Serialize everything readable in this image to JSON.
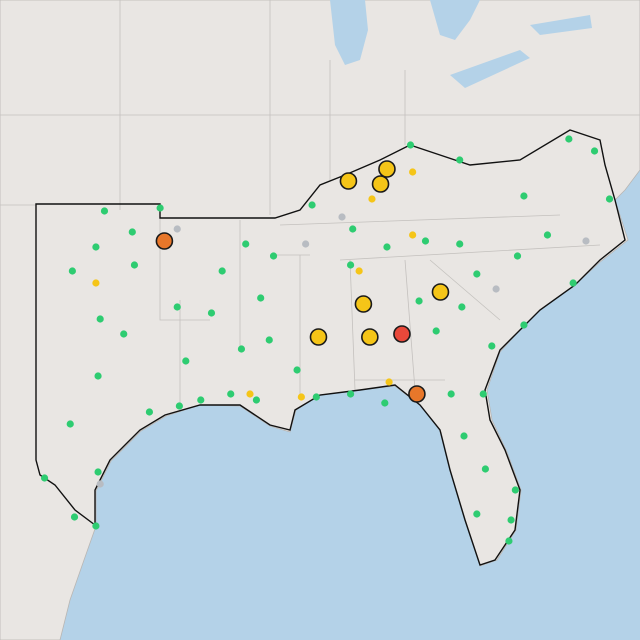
{
  "map": {
    "marker_groups": [
      {
        "kind": "small",
        "color": "#2ecc71",
        "points": [
          [
            -99.8,
            36.8
          ],
          [
            -97.2,
            36.9
          ],
          [
            -100.2,
            35.6
          ],
          [
            -98.5,
            36.1
          ],
          [
            -101.3,
            34.8
          ],
          [
            -98.4,
            35.0
          ],
          [
            -100.0,
            33.2
          ],
          [
            -98.9,
            32.7
          ],
          [
            -100.1,
            31.3
          ],
          [
            -101.4,
            29.7
          ],
          [
            -97.7,
            30.1
          ],
          [
            -96.3,
            30.3
          ],
          [
            -100.1,
            28.1
          ],
          [
            -102.6,
            27.9
          ],
          [
            -100.2,
            26.3
          ],
          [
            -101.2,
            26.6
          ],
          [
            -96.4,
            33.6
          ],
          [
            -96.0,
            31.8
          ],
          [
            -94.8,
            33.4
          ],
          [
            -94.3,
            34.8
          ],
          [
            -93.2,
            35.7
          ],
          [
            -91.9,
            35.3
          ],
          [
            -92.5,
            33.9
          ],
          [
            -93.4,
            32.2
          ],
          [
            -92.1,
            32.5
          ],
          [
            -90.8,
            31.5
          ],
          [
            -89.9,
            30.6
          ],
          [
            -88.3,
            30.7
          ],
          [
            -86.7,
            30.4
          ],
          [
            -90.1,
            37.0
          ],
          [
            -88.2,
            36.2
          ],
          [
            -86.6,
            35.6
          ],
          [
            -84.8,
            35.8
          ],
          [
            -83.2,
            35.7
          ],
          [
            -85.1,
            33.8
          ],
          [
            -83.1,
            33.6
          ],
          [
            -82.4,
            34.7
          ],
          [
            -80.5,
            35.3
          ],
          [
            -79.1,
            36.0
          ],
          [
            -77.9,
            34.4
          ],
          [
            -76.2,
            37.2
          ],
          [
            -76.9,
            38.8
          ],
          [
            -78.1,
            39.2
          ],
          [
            -80.2,
            37.3
          ],
          [
            -83.2,
            38.5
          ],
          [
            -85.5,
            39.0
          ],
          [
            -81.7,
            32.3
          ],
          [
            -80.2,
            33.0
          ],
          [
            -82.1,
            30.7
          ],
          [
            -83.0,
            29.3
          ],
          [
            -82.0,
            28.2
          ],
          [
            -80.6,
            27.5
          ],
          [
            -80.8,
            26.5
          ],
          [
            -82.4,
            26.7
          ],
          [
            -80.9,
            25.8
          ],
          [
            -83.6,
            30.7
          ],
          [
            -93.9,
            30.7
          ],
          [
            -95.3,
            30.5
          ],
          [
            -92.7,
            30.5
          ],
          [
            -84.3,
            32.8
          ],
          [
            -88.3,
            35.0
          ]
        ]
      },
      {
        "kind": "small",
        "color": "#f5c518",
        "points": [
          [
            -100.2,
            34.4
          ],
          [
            -85.4,
            38.1
          ],
          [
            -87.3,
            37.2
          ],
          [
            -85.4,
            36.0
          ],
          [
            -86.5,
            31.1
          ],
          [
            -93.0,
            30.7
          ],
          [
            -90.6,
            30.6
          ],
          [
            -87.9,
            34.8
          ]
        ]
      },
      {
        "kind": "small",
        "color": "#b8bcc2",
        "points": [
          [
            -96.4,
            36.2
          ],
          [
            -88.7,
            36.6
          ],
          [
            -90.4,
            35.7
          ],
          [
            -77.3,
            35.8
          ],
          [
            -81.5,
            34.2
          ],
          [
            -100.0,
            27.7
          ]
        ]
      },
      {
        "kind": "large",
        "color": "#f5c518",
        "points": [
          [
            -88.4,
            37.8
          ],
          [
            -86.6,
            38.2
          ],
          [
            -86.9,
            37.7
          ],
          [
            -87.7,
            33.7
          ],
          [
            -89.8,
            32.6
          ],
          [
            -87.4,
            32.6
          ],
          [
            -84.1,
            34.1
          ]
        ]
      },
      {
        "kind": "large",
        "color": "#e8772a",
        "points": [
          [
            -97.0,
            35.8
          ],
          [
            -85.2,
            30.7
          ]
        ]
      },
      {
        "kind": "large",
        "color": "#e8483a",
        "points": [
          [
            -85.9,
            32.7
          ]
        ]
      }
    ]
  }
}
